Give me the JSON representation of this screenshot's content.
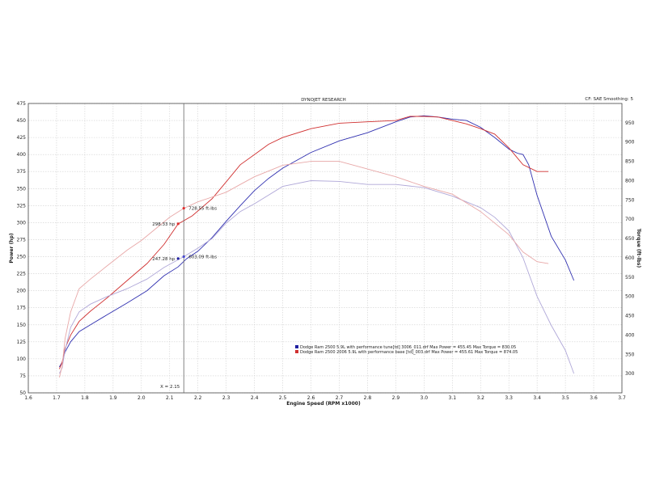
{
  "chart_data": {
    "type": "line",
    "title": "DYNOJET RESEARCH",
    "cf_label": "CF: SAE  Smoothing: 5",
    "xlabel": "Engine Speed (RPM x1000)",
    "ylabel_left": "Power (hp)",
    "ylabel_right": "Torque (ft-lbs)",
    "xlim": [
      1.6,
      3.7
    ],
    "ylim_left": [
      50,
      475
    ],
    "ylim_right": [
      250,
      1000
    ],
    "grid": true,
    "x_ticks": [
      "1.6",
      "1.7",
      "1.8",
      "1.9",
      "2.0",
      "2.1",
      "2.2",
      "2.3",
      "2.4",
      "2.5",
      "2.6",
      "2.7",
      "2.8",
      "2.9",
      "3.0",
      "3.1",
      "3.2",
      "3.3",
      "3.4",
      "3.5",
      "3.6",
      "3.7"
    ],
    "y_left_ticks": [
      "50",
      "75",
      "100",
      "125",
      "150",
      "175",
      "200",
      "225",
      "250",
      "275",
      "300",
      "325",
      "350",
      "375",
      "400",
      "425",
      "450",
      "475"
    ],
    "y_right_ticks": [
      "300",
      "350",
      "400",
      "450",
      "500",
      "550",
      "600",
      "650",
      "700",
      "750",
      "800",
      "850",
      "900",
      "950"
    ],
    "cursor": {
      "x": 2.15,
      "label": "X = 2.15"
    },
    "annotations": [
      {
        "text": "728.55 ft-lbs",
        "x": 2.15,
        "y_torque": 728.55,
        "color": "#e03030"
      },
      {
        "text": "298.33 hp",
        "x": 2.13,
        "y_power": 298.33,
        "color": "#e03030"
      },
      {
        "text": "603.09 ft-lbs",
        "x": 2.15,
        "y_torque": 603.09,
        "color": "#4a4ad0"
      },
      {
        "text": "247.28 hp",
        "x": 2.13,
        "y_power": 247.28,
        "color": "#2020a0"
      }
    ],
    "legend": [
      {
        "text": "Dodge Ram 2500 5.9L with performance tune[td] 3006_011.drf Max Power = 455.45      Max Torque = 830.05",
        "color": "#2020a0"
      },
      {
        "text": "Dodge Ram 2500 2006 5.9L with performance base [td]_003.drf Max Power = 455.61      Max Torque = 874.05",
        "color": "#d03030"
      }
    ],
    "series": [
      {
        "axis": "left",
        "color": "#3030b0",
        "x": [
          1.71,
          1.72,
          1.73,
          1.75,
          1.78,
          1.82,
          1.88,
          1.95,
          2.02,
          2.08,
          2.13,
          2.16,
          2.2,
          2.25,
          2.3,
          2.35,
          2.4,
          2.45,
          2.5,
          2.6,
          2.7,
          2.8,
          2.9,
          2.95,
          3.0,
          3.05,
          3.1,
          3.15,
          3.2,
          3.25,
          3.3,
          3.33,
          3.35,
          3.37,
          3.4,
          3.45,
          3.5,
          3.53
        ],
        "y": [
          88,
          95,
          110,
          125,
          140,
          150,
          165,
          182,
          200,
          222,
          235,
          247,
          258,
          278,
          302,
          325,
          347,
          365,
          380,
          403,
          420,
          432,
          448,
          455,
          457,
          455,
          452,
          450,
          440,
          425,
          408,
          402,
          400,
          385,
          340,
          280,
          245,
          215
        ]
      },
      {
        "axis": "left",
        "color": "#d03030",
        "x": [
          1.71,
          1.72,
          1.73,
          1.75,
          1.78,
          1.82,
          1.88,
          1.95,
          2.02,
          2.08,
          2.13,
          2.18,
          2.25,
          2.3,
          2.35,
          2.4,
          2.45,
          2.5,
          2.6,
          2.7,
          2.8,
          2.9,
          2.95,
          3.0,
          3.05,
          3.1,
          3.15,
          3.2,
          3.25,
          3.3,
          3.35,
          3.4,
          3.44
        ],
        "y": [
          85,
          95,
          115,
          135,
          155,
          170,
          190,
          215,
          240,
          268,
          298,
          310,
          335,
          360,
          385,
          400,
          415,
          425,
          438,
          446,
          448,
          450,
          456,
          456,
          455,
          450,
          445,
          438,
          430,
          410,
          385,
          375,
          375
        ]
      },
      {
        "axis": "right",
        "color": "#b0a8d8",
        "x": [
          1.71,
          1.72,
          1.73,
          1.75,
          1.78,
          1.82,
          1.88,
          1.95,
          2.02,
          2.08,
          2.15,
          2.2,
          2.25,
          2.3,
          2.35,
          2.4,
          2.5,
          2.6,
          2.7,
          2.8,
          2.9,
          3.0,
          3.1,
          3.2,
          3.25,
          3.3,
          3.35,
          3.4,
          3.45,
          3.5,
          3.53
        ],
        "y": [
          300,
          315,
          360,
          420,
          460,
          480,
          500,
          520,
          545,
          575,
          603,
          625,
          650,
          690,
          720,
          740,
          785,
          800,
          798,
          790,
          790,
          782,
          760,
          730,
          705,
          670,
          600,
          500,
          425,
          360,
          300
        ]
      },
      {
        "axis": "right",
        "color": "#e8a8a8",
        "x": [
          1.71,
          1.72,
          1.73,
          1.75,
          1.78,
          1.82,
          1.88,
          1.95,
          2.0,
          2.05,
          2.1,
          2.15,
          2.2,
          2.3,
          2.35,
          2.4,
          2.5,
          2.6,
          2.7,
          2.8,
          2.9,
          3.0,
          3.1,
          3.2,
          3.3,
          3.35,
          3.4,
          3.44
        ],
        "y": [
          290,
          320,
          390,
          460,
          520,
          545,
          580,
          620,
          645,
          675,
          705,
          728,
          745,
          770,
          790,
          810,
          840,
          850,
          850,
          830,
          810,
          785,
          765,
          720,
          660,
          615,
          590,
          585
        ]
      }
    ]
  }
}
